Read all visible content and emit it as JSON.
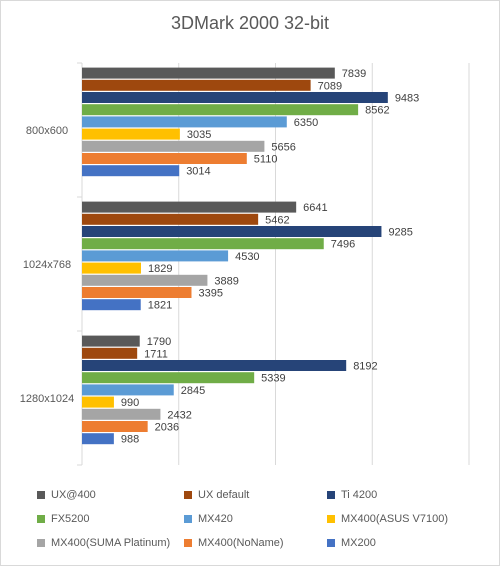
{
  "chart_data": {
    "type": "bar",
    "orientation": "horizontal",
    "title": "3DMark 2000 32-bit",
    "xlabel": "",
    "ylabel": "",
    "xlim": [
      0,
      12000
    ],
    "x_gridlines": [
      0,
      3000,
      6000,
      9000,
      12000
    ],
    "grid": true,
    "legend_position": "bottom",
    "categories": [
      "800x600",
      "1024x768",
      "1280x1024"
    ],
    "series": [
      {
        "name": "UX@400",
        "color": "#595959",
        "values": [
          7839,
          6641,
          1790
        ]
      },
      {
        "name": "UX default",
        "color": "#9e480e",
        "values": [
          7089,
          5462,
          1711
        ]
      },
      {
        "name": "Ti 4200",
        "color": "#264478",
        "values": [
          9483,
          9285,
          8192
        ]
      },
      {
        "name": "FX5200",
        "color": "#70ad47",
        "values": [
          8562,
          7496,
          5339
        ]
      },
      {
        "name": "MX420",
        "color": "#5b9bd5",
        "values": [
          6350,
          4530,
          2845
        ]
      },
      {
        "name": "MX400(ASUS V7100)",
        "color": "#ffc000",
        "values": [
          3035,
          1829,
          990
        ]
      },
      {
        "name": "MX400(SUMA Platinum)",
        "color": "#a5a5a5",
        "values": [
          5656,
          3889,
          2432
        ]
      },
      {
        "name": "MX400(NoName)",
        "color": "#ed7d31",
        "values": [
          5110,
          3395,
          2036
        ]
      },
      {
        "name": "MX200",
        "color": "#4472c4",
        "values": [
          3014,
          1821,
          988
        ]
      }
    ]
  }
}
